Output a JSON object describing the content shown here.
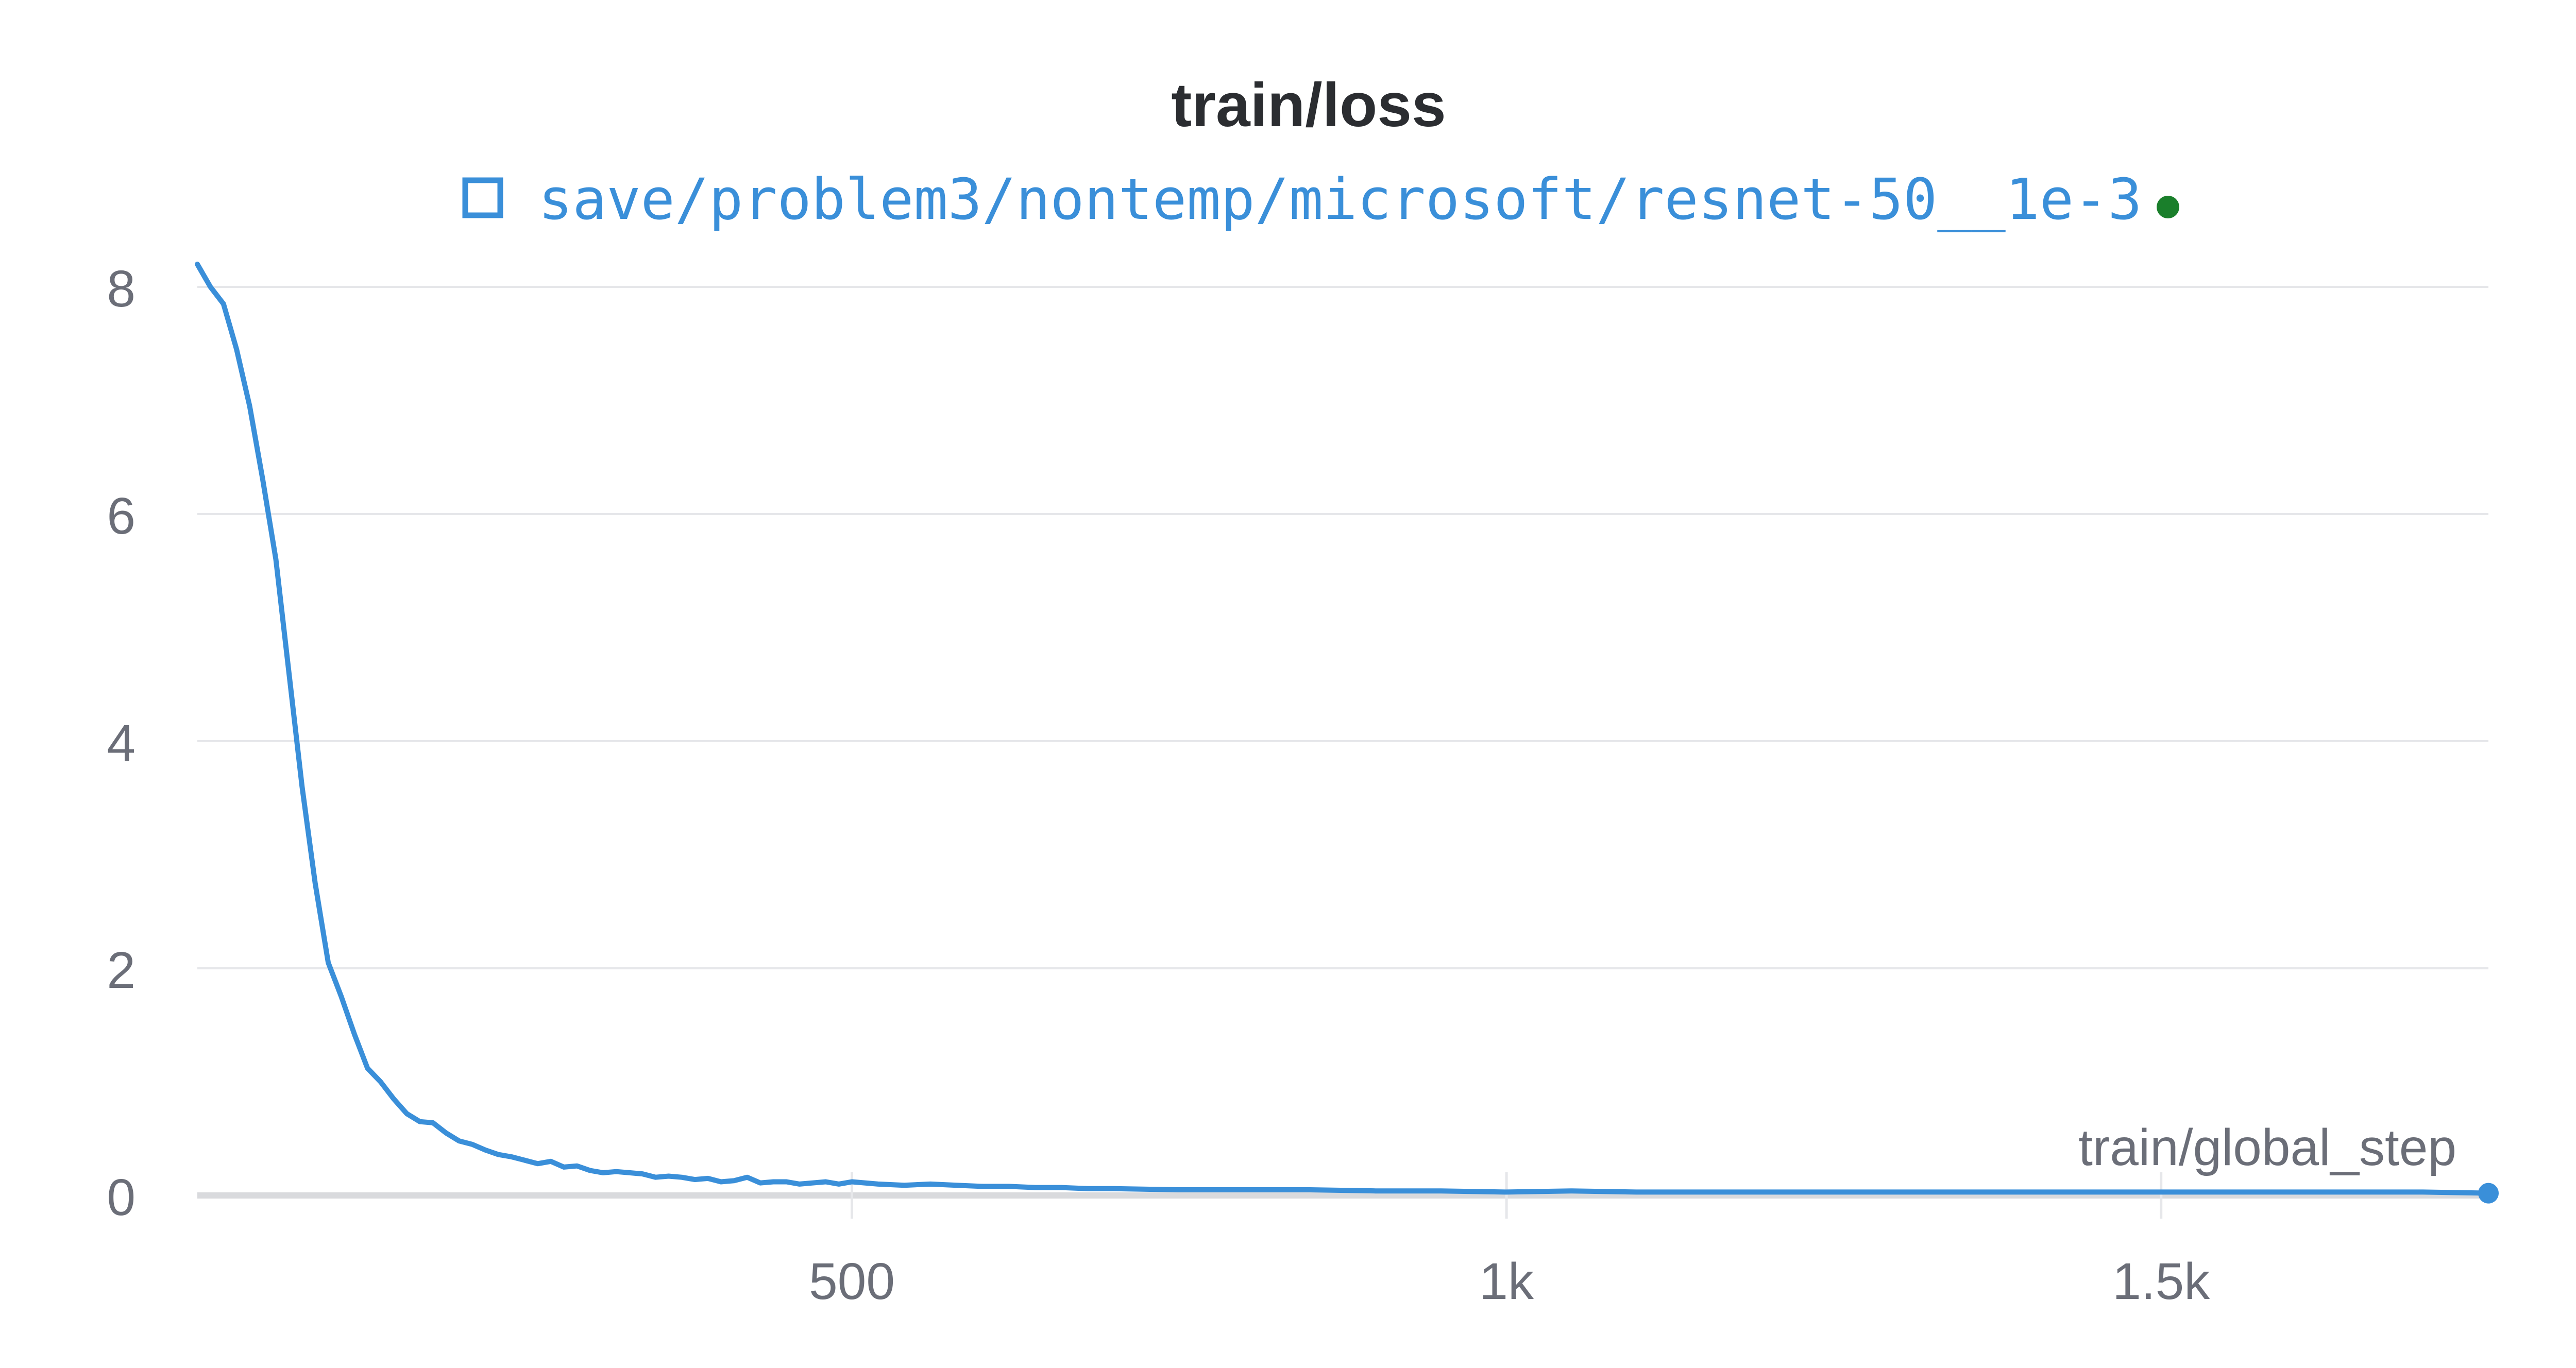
{
  "chart_data": {
    "type": "line",
    "title": "train/loss",
    "xlabel": "train/global_step",
    "ylabel": "",
    "xlim": [
      0,
      1750
    ],
    "ylim": [
      0,
      8
    ],
    "grid": true,
    "legend_position": "top-center",
    "x_ticks": [
      {
        "value": 500,
        "label": "500"
      },
      {
        "value": 1000,
        "label": "1k"
      },
      {
        "value": 1500,
        "label": "1.5k"
      }
    ],
    "y_ticks": [
      {
        "value": 0,
        "label": "0"
      },
      {
        "value": 2,
        "label": "2"
      },
      {
        "value": 4,
        "label": "4"
      },
      {
        "value": 6,
        "label": "6"
      },
      {
        "value": 8,
        "label": "8"
      }
    ],
    "colors": {
      "series": "#3a8fd9",
      "status_dot": "#1a7f2b",
      "grid": "#e6e7ea",
      "zero_line": "#d9dadd"
    },
    "legend": {
      "icon": "square-outline-icon",
      "status_icon": "green-dot-icon"
    },
    "series": [
      {
        "name": "save/problem3/nontemp/microsoft/resnet-50__1e-3",
        "x": [
          0,
          10,
          20,
          30,
          40,
          50,
          60,
          70,
          80,
          90,
          100,
          110,
          120,
          130,
          140,
          150,
          160,
          170,
          180,
          190,
          200,
          210,
          220,
          230,
          240,
          250,
          260,
          270,
          280,
          290,
          300,
          310,
          320,
          330,
          340,
          350,
          360,
          370,
          380,
          390,
          400,
          410,
          420,
          430,
          440,
          450,
          460,
          470,
          480,
          490,
          500,
          520,
          540,
          560,
          580,
          600,
          620,
          640,
          660,
          680,
          700,
          750,
          800,
          850,
          900,
          950,
          1000,
          1050,
          1100,
          1150,
          1200,
          1250,
          1300,
          1350,
          1400,
          1450,
          1500,
          1550,
          1600,
          1650,
          1700,
          1750
        ],
        "y": [
          8.2,
          8.0,
          7.85,
          7.45,
          6.95,
          6.3,
          5.6,
          4.6,
          3.6,
          2.75,
          2.05,
          1.75,
          1.42,
          1.12,
          1.0,
          0.85,
          0.72,
          0.65,
          0.64,
          0.55,
          0.48,
          0.45,
          0.4,
          0.36,
          0.34,
          0.31,
          0.28,
          0.3,
          0.25,
          0.26,
          0.22,
          0.2,
          0.21,
          0.2,
          0.19,
          0.16,
          0.17,
          0.16,
          0.14,
          0.15,
          0.12,
          0.13,
          0.16,
          0.11,
          0.12,
          0.12,
          0.1,
          0.11,
          0.12,
          0.1,
          0.12,
          0.1,
          0.09,
          0.1,
          0.09,
          0.08,
          0.08,
          0.07,
          0.07,
          0.06,
          0.06,
          0.05,
          0.05,
          0.05,
          0.04,
          0.04,
          0.03,
          0.04,
          0.03,
          0.03,
          0.03,
          0.03,
          0.03,
          0.03,
          0.03,
          0.03,
          0.03,
          0.03,
          0.03,
          0.03,
          0.03,
          0.02
        ]
      }
    ]
  }
}
